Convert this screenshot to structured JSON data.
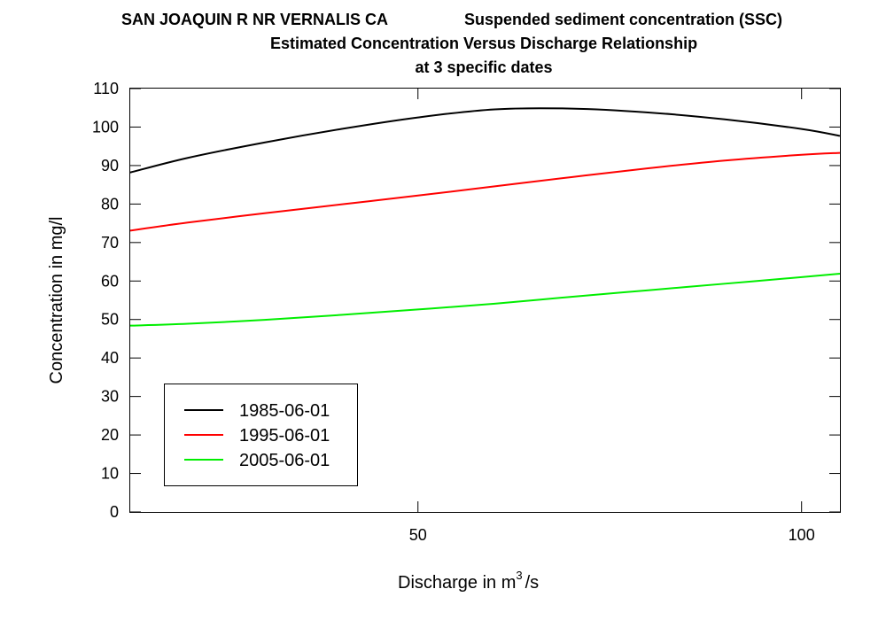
{
  "header": {
    "site": "SAN JOAQUIN R NR VERNALIS CA",
    "parameter": "Suspended sediment concentration (SSC)",
    "subtitle": "Estimated Concentration Versus Discharge Relationship",
    "subtitle2": "at 3 specific dates"
  },
  "chart_data": {
    "type": "line",
    "title": "SAN JOAQUIN R NR VERNALIS CA    Suspended sediment concentration (SSC)",
    "subtitle": "Estimated Concentration Versus Discharge Relationship at 3 specific dates",
    "xlabel_main": "Discharge in m",
    "xlabel_sup": "3",
    "xlabel_tail": "/s",
    "ylabel": "Concentration in mg/l",
    "xlim": [
      12.5,
      105
    ],
    "ylim": [
      0,
      110
    ],
    "x_ticks": [
      50,
      100
    ],
    "y_ticks": [
      0,
      10,
      20,
      30,
      40,
      50,
      60,
      70,
      80,
      90,
      100,
      110
    ],
    "grid": false,
    "legend_position": "bottom-left",
    "series": [
      {
        "name": "1985-06-01",
        "color": "#000000",
        "x": [
          12.5,
          20,
          30,
          40,
          50,
          60,
          70,
          80,
          90,
          100,
          105
        ],
        "y": [
          88.2,
          92.0,
          96.0,
          99.5,
          102.5,
          104.6,
          104.8,
          103.8,
          102.0,
          99.5,
          97.7
        ]
      },
      {
        "name": "1995-06-01",
        "color": "#ff0000",
        "x": [
          12.5,
          20,
          30,
          40,
          50,
          60,
          70,
          80,
          90,
          100,
          105
        ],
        "y": [
          73.1,
          75.2,
          77.6,
          79.9,
          82.2,
          84.6,
          87.0,
          89.3,
          91.3,
          92.8,
          93.3
        ]
      },
      {
        "name": "2005-06-01",
        "color": "#00ee00",
        "x": [
          12.5,
          20,
          30,
          40,
          50,
          60,
          70,
          80,
          90,
          100,
          105
        ],
        "y": [
          48.4,
          48.9,
          49.9,
          51.2,
          52.6,
          54.1,
          55.9,
          57.6,
          59.3,
          61.0,
          61.9
        ]
      }
    ]
  }
}
